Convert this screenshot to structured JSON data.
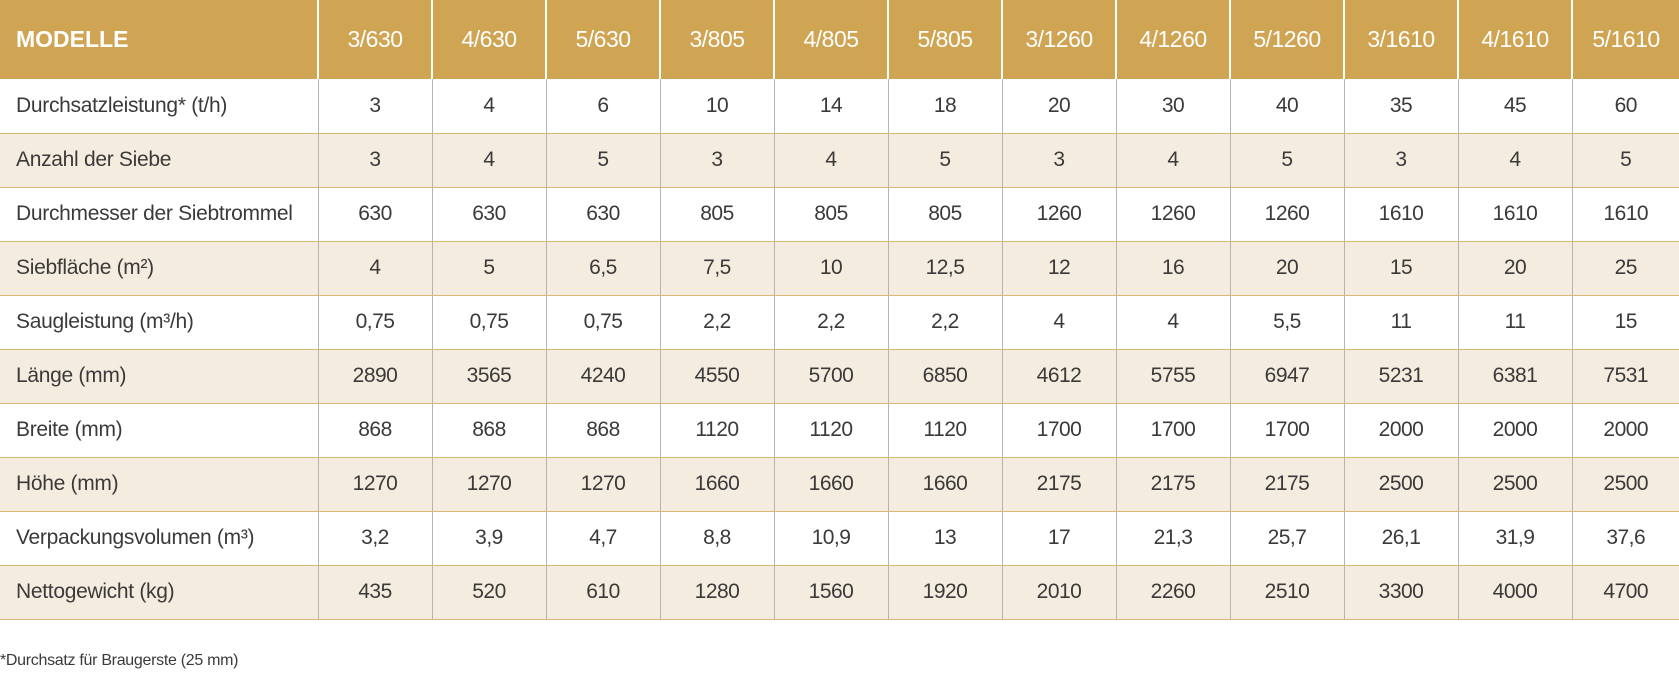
{
  "table": {
    "corner_label": "MODELLE",
    "columns": [
      "3/630",
      "4/630",
      "5/630",
      "3/805",
      "4/805",
      "5/805",
      "3/1260",
      "4/1260",
      "5/1260",
      "3/1610",
      "4/1610",
      "5/1610"
    ],
    "rows": [
      {
        "label": "Durchsatzleistung* (t/h)",
        "values": [
          "3",
          "4",
          "6",
          "10",
          "14",
          "18",
          "20",
          "30",
          "40",
          "35",
          "45",
          "60"
        ]
      },
      {
        "label": "Anzahl der Siebe",
        "values": [
          "3",
          "4",
          "5",
          "3",
          "4",
          "5",
          "3",
          "4",
          "5",
          "3",
          "4",
          "5"
        ]
      },
      {
        "label": "Durchmesser der Siebtrommel",
        "values": [
          "630",
          "630",
          "630",
          "805",
          "805",
          "805",
          "1260",
          "1260",
          "1260",
          "1610",
          "1610",
          "1610"
        ]
      },
      {
        "label": "Siebfläche (m²)",
        "values": [
          "4",
          "5",
          "6,5",
          "7,5",
          "10",
          "12,5",
          "12",
          "16",
          "20",
          "15",
          "20",
          "25"
        ]
      },
      {
        "label": "Saugleistung (m³/h)",
        "values": [
          "0,75",
          "0,75",
          "0,75",
          "2,2",
          "2,2",
          "2,2",
          "4",
          "4",
          "5,5",
          "11",
          "11",
          "15"
        ]
      },
      {
        "label": "Länge (mm)",
        "values": [
          "2890",
          "3565",
          "4240",
          "4550",
          "5700",
          "6850",
          "4612",
          "5755",
          "6947",
          "5231",
          "6381",
          "7531"
        ]
      },
      {
        "label": "Breite (mm)",
        "values": [
          "868",
          "868",
          "868",
          "1120",
          "1120",
          "1120",
          "1700",
          "1700",
          "1700",
          "2000",
          "2000",
          "2000"
        ]
      },
      {
        "label": "Höhe (mm)",
        "values": [
          "1270",
          "1270",
          "1270",
          "1660",
          "1660",
          "1660",
          "2175",
          "2175",
          "2175",
          "2500",
          "2500",
          "2500"
        ]
      },
      {
        "label": "Verpackungsvolumen (m³)",
        "values": [
          "3,2",
          "3,9",
          "4,7",
          "8,8",
          "10,9",
          "13",
          "17",
          "21,3",
          "25,7",
          "26,1",
          "31,9",
          "37,6"
        ]
      },
      {
        "label": "Nettogewicht (kg)",
        "values": [
          "435",
          "520",
          "610",
          "1280",
          "1560",
          "1920",
          "2010",
          "2260",
          "2510",
          "3300",
          "4000",
          "4700"
        ]
      }
    ]
  },
  "footnote": "*Durchsatz für Braugerste (25 mm)",
  "colors": {
    "header_bg": "#cfa453",
    "stripe_bg": "#f5ece0",
    "row_rule": "#d9b876"
  }
}
